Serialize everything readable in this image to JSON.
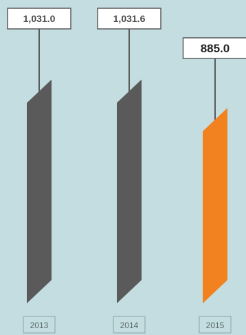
{
  "chart_data": {
    "type": "bar",
    "categories": [
      "2013",
      "2014",
      "2015"
    ],
    "values": [
      1031.0,
      1031.6,
      885.0
    ],
    "value_labels": [
      "1,031.0",
      "1,031.6",
      "885.0"
    ],
    "highlight_index": 2,
    "title": "",
    "xlabel": "",
    "ylabel": "",
    "ylim": [
      0,
      1100
    ],
    "grid": false,
    "legend": "none"
  },
  "colors": {
    "background": "#c3dde0",
    "bar": "#5a5a5a",
    "highlight_bar": "#f2811f",
    "label_border": "#5a5a5a",
    "label_fill": "#ffffff",
    "connector": "#5a5a5a",
    "text": "#4a4a4a"
  }
}
